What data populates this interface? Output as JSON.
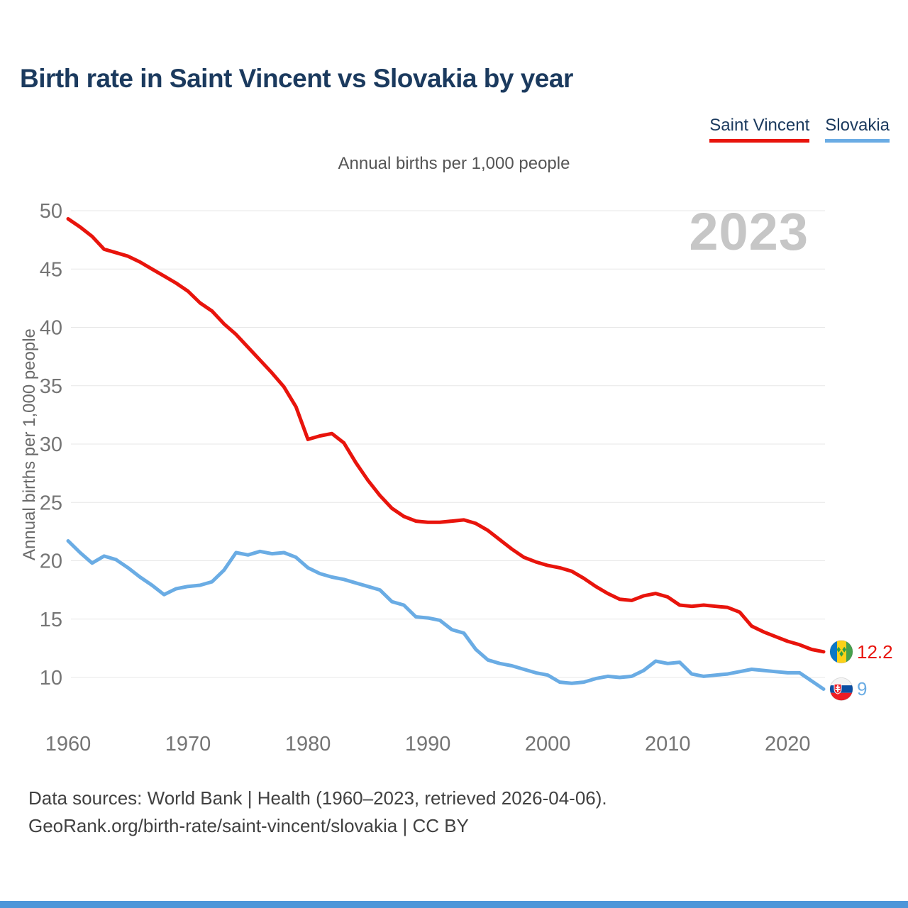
{
  "page": {
    "title": "Birth rate in Saint Vincent vs Slovakia by year",
    "watermark": "2023"
  },
  "legend": {
    "items": [
      {
        "label": "Saint Vincent"
      },
      {
        "label": "Slovakia"
      }
    ]
  },
  "chart_data": {
    "type": "line",
    "title": "Annual births per 1,000 people",
    "ylabel": "Annual births per 1,000 people",
    "x_range": [
      1960,
      2023
    ],
    "xticks": [
      1960,
      1970,
      1980,
      1990,
      2000,
      2010,
      2020
    ],
    "yticks": [
      10,
      15,
      20,
      25,
      30,
      35,
      40,
      45,
      50
    ],
    "ylim": [
      9,
      50
    ],
    "grid": true,
    "legend_position": "top-right",
    "series": [
      {
        "id": "saint-vincent",
        "name": "Saint Vincent",
        "color": "#e8140c",
        "end_label": "12.2",
        "values": [
          49.3,
          48.6,
          47.8,
          46.7,
          46.4,
          46.1,
          45.6,
          45.0,
          44.4,
          43.8,
          43.1,
          42.1,
          41.4,
          40.3,
          39.4,
          38.3,
          37.2,
          36.1,
          34.9,
          33.2,
          30.4,
          30.7,
          30.9,
          30.1,
          28.4,
          26.9,
          25.6,
          24.5,
          23.8,
          23.4,
          23.3,
          23.3,
          23.4,
          23.5,
          23.2,
          22.6,
          21.8,
          21.0,
          20.3,
          19.9,
          19.6,
          19.4,
          19.1,
          18.5,
          17.8,
          17.2,
          16.7,
          16.6,
          17.0,
          17.2,
          16.9,
          16.2,
          16.1,
          16.2,
          16.1,
          16.0,
          15.6,
          14.4,
          13.9,
          13.5,
          13.1,
          12.8,
          12.4,
          12.2
        ]
      },
      {
        "id": "slovakia",
        "name": "Slovakia",
        "color": "#6aace4",
        "end_label": "9",
        "values": [
          21.7,
          20.7,
          19.8,
          20.4,
          20.1,
          19.4,
          18.6,
          17.9,
          17.1,
          17.6,
          17.8,
          17.9,
          18.2,
          19.2,
          20.7,
          20.5,
          20.8,
          20.6,
          20.7,
          20.3,
          19.4,
          18.9,
          18.6,
          18.4,
          18.1,
          17.8,
          17.5,
          16.5,
          16.2,
          15.2,
          15.1,
          14.9,
          14.1,
          13.8,
          12.4,
          11.5,
          11.2,
          11.0,
          10.7,
          10.4,
          10.2,
          9.6,
          9.5,
          9.6,
          9.9,
          10.1,
          10.0,
          10.1,
          10.6,
          11.4,
          11.2,
          11.3,
          10.3,
          10.1,
          10.2,
          10.3,
          10.5,
          10.7,
          10.6,
          10.5,
          10.4,
          10.4,
          9.7,
          9.0
        ]
      }
    ]
  },
  "footer": {
    "line1": "Data sources: World Bank | Health (1960–2023, retrieved 2026-04-06).",
    "line2": "GeoRank.org/birth-rate/saint-vincent/slovakia | CC BY"
  },
  "colors": {
    "title_text": "#1b3a5e",
    "grid": "#e7e7e7",
    "bottom_bar": "#4d96d9"
  }
}
